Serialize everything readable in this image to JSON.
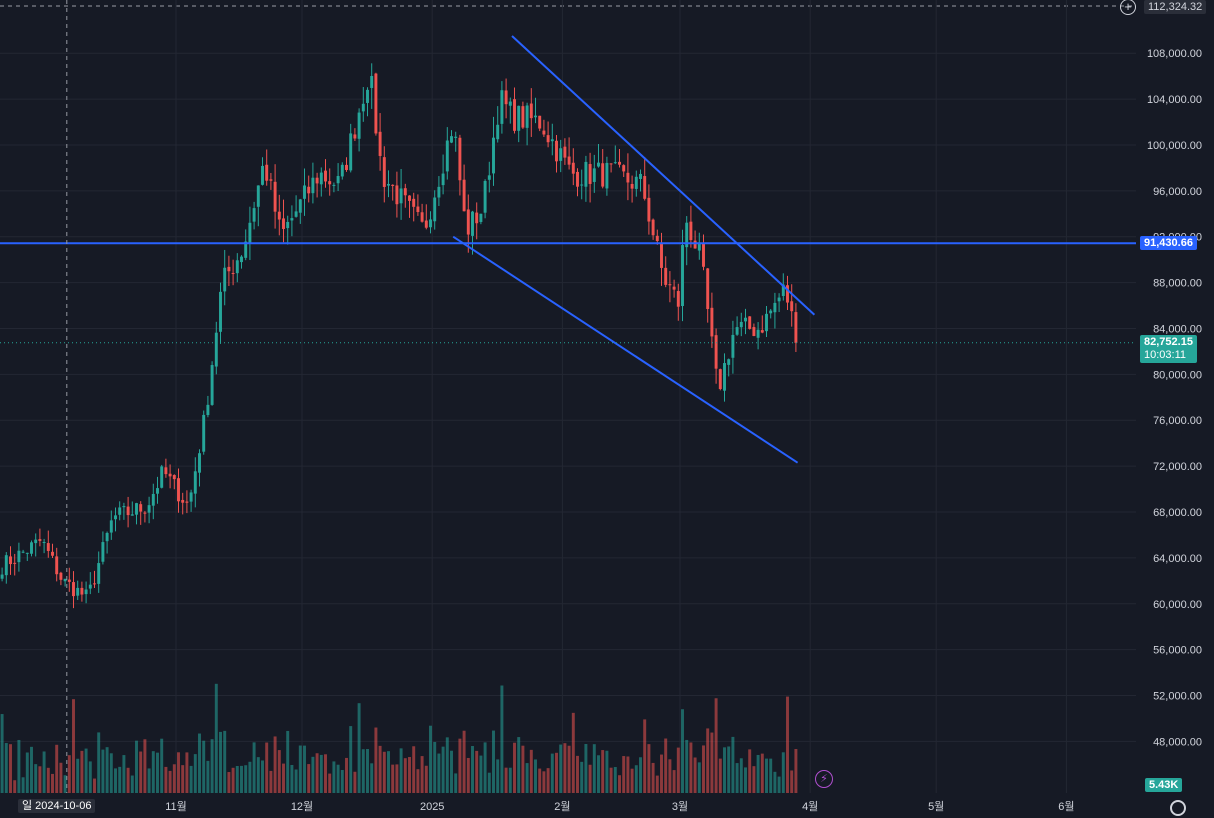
{
  "chart_data": {
    "type": "candlestick",
    "price_axis": {
      "min": 44000,
      "max": 112324.32,
      "ticks": [
        "48,000.00",
        "52,000.00",
        "56,000.00",
        "60,000.00",
        "64,000.00",
        "68,000.00",
        "72,000.00",
        "76,000.00",
        "80,000.00",
        "84,000.00",
        "88,000.00",
        "92,000.00",
        "96,000.00",
        "100,000.00",
        "104,000.00",
        "108,000.00"
      ],
      "tick_values": [
        48000,
        52000,
        56000,
        60000,
        64000,
        68000,
        72000,
        76000,
        80000,
        84000,
        88000,
        92000,
        96000,
        100000,
        104000,
        108000
      ]
    },
    "top_label": "112,324.32",
    "time_labels": [
      {
        "text": "11월",
        "date": "2024-11-01"
      },
      {
        "text": "12월",
        "date": "2024-12-01"
      },
      {
        "text": "2025",
        "date": "2025-01-01"
      },
      {
        "text": "2월",
        "date": "2025-02-01"
      },
      {
        "text": "3월",
        "date": "2025-03-01"
      },
      {
        "text": "4월",
        "date": "2025-04-01"
      },
      {
        "text": "5월",
        "date": "2025-05-01"
      },
      {
        "text": "6월",
        "date": "2025-06-01"
      }
    ],
    "crosshair": {
      "label": "일 2024-10-06",
      "date": "2024-10-06"
    },
    "horizontal_line": {
      "value": 91430.66,
      "label": "91,430.66",
      "color": "#2962ff"
    },
    "current_price": {
      "value": 82752.15,
      "label": "82,752.15",
      "countdown": "10:03:11",
      "color": "#26a69a"
    },
    "volume_label": "5.43K",
    "trendlines": [
      {
        "from": {
          "date": "2025-01-20",
          "price": 109500
        },
        "to": {
          "date": "2025-04-02",
          "price": 85200
        }
      },
      {
        "from": {
          "date": "2025-01-06",
          "price": 92000
        },
        "to": {
          "date": "2025-03-29",
          "price": 72300
        }
      }
    ],
    "key_prices": [
      {
        "date": "2024-09-20",
        "price": 63200
      },
      {
        "date": "2024-09-30",
        "price": 65500
      },
      {
        "date": "2024-10-05",
        "price": 62000
      },
      {
        "date": "2024-10-11",
        "price": 60500
      },
      {
        "date": "2024-10-17",
        "price": 67500
      },
      {
        "date": "2024-10-25",
        "price": 68500
      },
      {
        "date": "2024-10-29",
        "price": 71500
      },
      {
        "date": "2024-11-04",
        "price": 68500
      },
      {
        "date": "2024-11-08",
        "price": 76500
      },
      {
        "date": "2024-11-12",
        "price": 88000
      },
      {
        "date": "2024-11-17",
        "price": 91000
      },
      {
        "date": "2024-11-22",
        "price": 98500
      },
      {
        "date": "2024-11-26",
        "price": 92000
      },
      {
        "date": "2024-12-05",
        "price": 97500
      },
      {
        "date": "2024-12-10",
        "price": 96500
      },
      {
        "date": "2024-12-17",
        "price": 106500
      },
      {
        "date": "2024-12-20",
        "price": 97500
      },
      {
        "date": "2024-12-30",
        "price": 92500
      },
      {
        "date": "2025-01-06",
        "price": 102000
      },
      {
        "date": "2025-01-09",
        "price": 92500
      },
      {
        "date": "2025-01-13",
        "price": 94500
      },
      {
        "date": "2025-01-17",
        "price": 104000
      },
      {
        "date": "2025-01-20",
        "price": 102500
      },
      {
        "date": "2025-01-27",
        "price": 102000
      },
      {
        "date": "2025-02-03",
        "price": 97500
      },
      {
        "date": "2025-02-12",
        "price": 97500
      },
      {
        "date": "2025-02-20",
        "price": 96500
      },
      {
        "date": "2025-02-25",
        "price": 88500
      },
      {
        "date": "2025-03-01",
        "price": 86000
      },
      {
        "date": "2025-03-02",
        "price": 94000
      },
      {
        "date": "2025-03-06",
        "price": 90000
      },
      {
        "date": "2025-03-10",
        "price": 78500
      },
      {
        "date": "2025-03-14",
        "price": 84000
      },
      {
        "date": "2025-03-20",
        "price": 84000
      },
      {
        "date": "2025-03-26",
        "price": 87500
      },
      {
        "date": "2025-03-29",
        "price": 82752.15
      }
    ],
    "colors": {
      "up": "#26a69a",
      "down": "#ef5350",
      "background": "#161a25",
      "grid": "#232733",
      "line": "#2962ff"
    }
  }
}
